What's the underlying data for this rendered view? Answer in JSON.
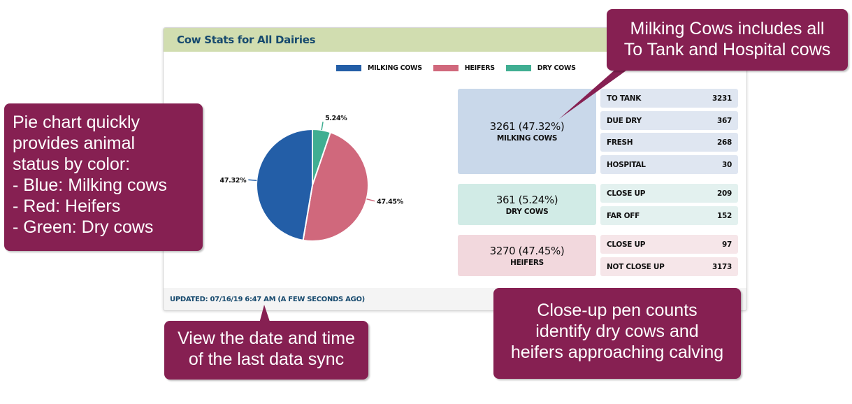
{
  "card": {
    "title": "Cow Stats for All Dairies",
    "footer": "UPDATED: 07/16/19 6:47 AM (A FEW SECONDS AGO)"
  },
  "colors": {
    "milking": "#235ea7",
    "heifers": "#d0687c",
    "dry": "#40ae92",
    "callout": "#862052",
    "header": "#d1ddb0"
  },
  "legend": [
    {
      "label": "MILKING COWS",
      "color": "#235ea7"
    },
    {
      "label": "HEIFERS",
      "color": "#d0687c"
    },
    {
      "label": "DRY COWS",
      "color": "#40ae92"
    }
  ],
  "chart_data": {
    "type": "pie",
    "title": "",
    "slices": [
      {
        "name": "DRY COWS",
        "value": 5.24,
        "label": "5.24%",
        "color": "#40ae92"
      },
      {
        "name": "HEIFERS",
        "value": 47.45,
        "label": "47.45%",
        "color": "#d0687c"
      },
      {
        "name": "MILKING COWS",
        "value": 47.32,
        "label": "47.32%",
        "color": "#235ea7"
      }
    ],
    "legend_position": "top"
  },
  "groups": [
    {
      "value": "3261 (47.32%)",
      "label": "MILKING COWS",
      "bg": "#c9d8ea",
      "row_bg": "#dfe6f1",
      "rows": [
        {
          "label": "TO TANK",
          "value": "3231"
        },
        {
          "label": "DUE DRY",
          "value": "367"
        },
        {
          "label": "FRESH",
          "value": "268"
        },
        {
          "label": "HOSPITAL",
          "value": "30"
        }
      ]
    },
    {
      "value": "361 (5.24%)",
      "label": "DRY COWS",
      "bg": "#d1ebe6",
      "row_bg": "#e3f1ef",
      "rows": [
        {
          "label": "CLOSE UP",
          "value": "209"
        },
        {
          "label": "FAR OFF",
          "value": "152"
        }
      ]
    },
    {
      "value": "3270 (47.45%)",
      "label": "HEIFERS",
      "bg": "#f2d8dd",
      "row_bg": "#f6e6e9",
      "rows": [
        {
          "label": "CLOSE UP",
          "value": "97"
        },
        {
          "label": "NOT CLOSE UP",
          "value": "3173"
        }
      ]
    }
  ],
  "callouts": {
    "top_right": [
      "Milking Cows includes all",
      "To Tank and Hospital cows"
    ],
    "left": [
      "Pie chart quickly",
      "provides animal",
      "status by color:",
      "- Blue: Milking cows",
      "- Red: Heifers",
      "- Green: Dry cows"
    ],
    "bottom_left": [
      "View the date and time",
      "of the last data sync"
    ],
    "bottom_right": [
      "Close-up pen counts",
      "identify dry cows and",
      "heifers approaching calving"
    ]
  }
}
